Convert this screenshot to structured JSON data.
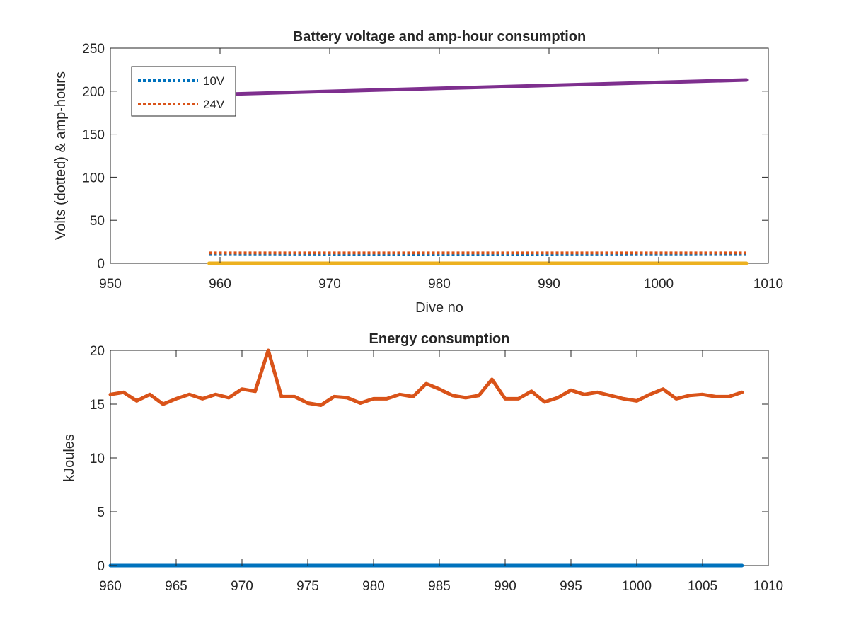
{
  "chart_data": [
    {
      "type": "line",
      "title": "Battery voltage and amp-hour consumption",
      "xlabel": "Dive no",
      "ylabel": "Volts (dotted) & amp-hours",
      "xlim": [
        950,
        1010
      ],
      "ylim": [
        0,
        250
      ],
      "xticks": [
        950,
        960,
        970,
        980,
        990,
        1000,
        1010
      ],
      "yticks": [
        0,
        50,
        100,
        150,
        200,
        250
      ],
      "grid": false,
      "legend_position": "top-left",
      "series": [
        {
          "name": "10V",
          "color": "#0072BD",
          "style": "dotted",
          "x": [
            959,
            977,
            1008
          ],
          "y": [
            11,
            10.5,
            11
          ]
        },
        {
          "name": "24V",
          "color": "#D95319",
          "style": "dotted",
          "x": [
            959,
            1008
          ],
          "y": [
            12,
            12
          ]
        },
        {
          "color": "#EDB120",
          "style": "solid",
          "x": [
            959,
            1008
          ],
          "y": [
            0,
            0
          ]
        },
        {
          "color": "#7E2F8E",
          "style": "solid",
          "x": [
            959,
            1008
          ],
          "y": [
            196,
            213
          ]
        }
      ]
    },
    {
      "type": "line",
      "title": "Energy consumption",
      "xlabel": "",
      "ylabel": "kJoules",
      "xlim": [
        960,
        1010
      ],
      "ylim": [
        0,
        20
      ],
      "xticks": [
        960,
        965,
        970,
        975,
        980,
        985,
        990,
        995,
        1000,
        1005,
        1010
      ],
      "yticks": [
        0,
        5,
        10,
        15,
        20
      ],
      "grid": false,
      "series": [
        {
          "color": "#0072BD",
          "style": "solid",
          "x": [
            960,
            1008
          ],
          "y": [
            0,
            0
          ]
        },
        {
          "color": "#D95319",
          "style": "solid",
          "x": [
            960,
            961,
            962,
            963,
            964,
            965,
            966,
            967,
            968,
            969,
            970,
            971,
            972,
            973,
            974,
            975,
            976,
            977,
            978,
            979,
            980,
            981,
            982,
            983,
            984,
            985,
            986,
            987,
            988,
            989,
            990,
            991,
            992,
            993,
            994,
            995,
            996,
            997,
            998,
            999,
            1000,
            1001,
            1002,
            1003,
            1004,
            1005,
            1006,
            1007,
            1008
          ],
          "y": [
            15.9,
            16.1,
            15.3,
            15.9,
            15.0,
            15.5,
            15.9,
            15.5,
            15.9,
            15.6,
            16.4,
            16.2,
            20.0,
            15.7,
            15.7,
            15.1,
            14.9,
            15.7,
            15.6,
            15.1,
            15.5,
            15.5,
            15.9,
            15.7,
            16.9,
            16.4,
            15.8,
            15.6,
            15.8,
            17.3,
            15.5,
            15.5,
            16.2,
            15.2,
            15.6,
            16.3,
            15.9,
            16.1,
            15.8,
            15.5,
            15.3,
            15.9,
            16.4,
            15.5,
            15.8,
            15.9,
            15.7,
            15.7,
            16.1
          ]
        }
      ]
    }
  ]
}
